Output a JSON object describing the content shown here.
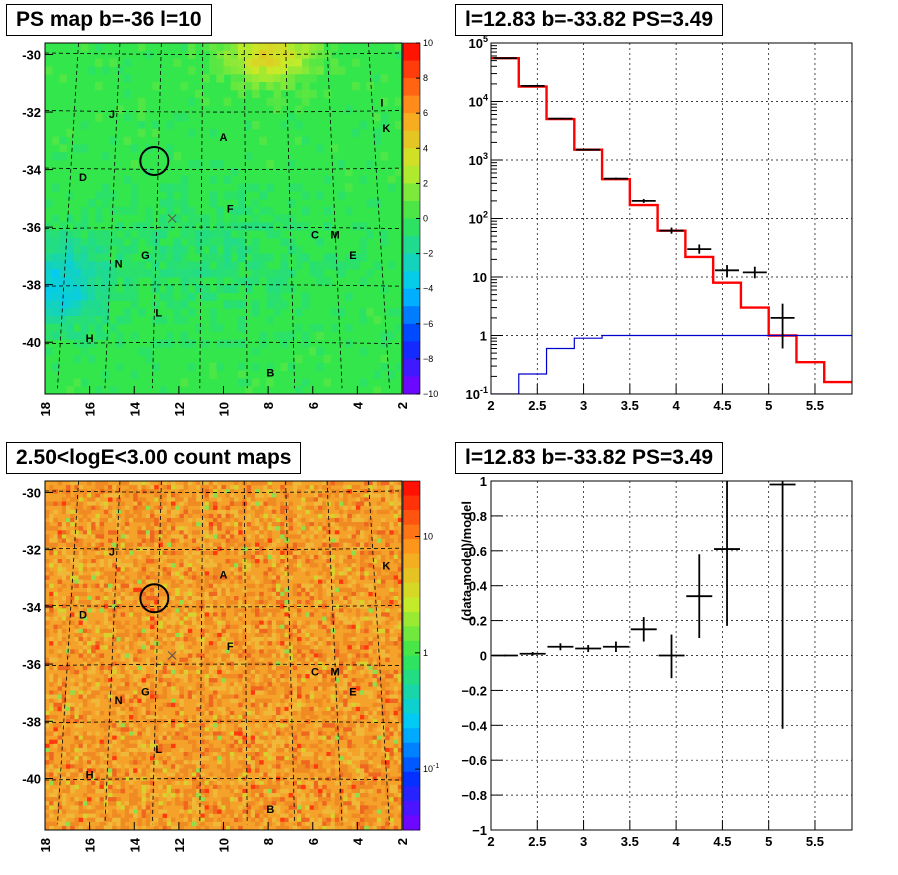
{
  "chart_data": [
    {
      "type": "heatmap",
      "title": "PS map b=-36 l=10",
      "x_ticks": [
        "18",
        "16",
        "14",
        "12",
        "10",
        "8",
        "6",
        "4",
        "2"
      ],
      "y_ticks": [
        "-30",
        "-32",
        "-34",
        "-36",
        "-38",
        "-40"
      ],
      "xlim": [
        18,
        2
      ],
      "ylim": [
        -41.8,
        -29.6
      ],
      "colorbar_ticks": [
        "10",
        "8",
        "6",
        "4",
        "2",
        "0",
        "−2",
        "−4",
        "−6",
        "−8",
        "−10"
      ],
      "colorbar_range": [
        -10,
        10
      ],
      "colors": {
        "background": "#33e64c",
        "hot": "#f0e43c",
        "cold": "#22e6d6"
      },
      "sources": [
        {
          "label": "J",
          "l": 15.0,
          "b": -32.2
        },
        {
          "label": "A",
          "l": 10.0,
          "b": -33.0
        },
        {
          "label": "I",
          "l": 2.9,
          "b": -31.8
        },
        {
          "label": "K",
          "l": 2.7,
          "b": -32.7
        },
        {
          "label": "D",
          "l": 16.3,
          "b": -34.4
        },
        {
          "label": "F",
          "l": 9.7,
          "b": -35.5
        },
        {
          "label": "C",
          "l": 5.9,
          "b": -36.4
        },
        {
          "label": "M",
          "l": 5.0,
          "b": -36.4
        },
        {
          "label": "E",
          "l": 4.2,
          "b": -37.1
        },
        {
          "label": "N",
          "l": 14.7,
          "b": -37.4
        },
        {
          "label": "G",
          "l": 13.5,
          "b": -37.1
        },
        {
          "label": "L",
          "l": 12.9,
          "b": -39.1
        },
        {
          "label": "H",
          "l": 16.0,
          "b": -40.0
        },
        {
          "label": "B",
          "l": 7.9,
          "b": -41.2
        }
      ],
      "circle": {
        "l": 13.1,
        "b": -33.7
      },
      "cross": {
        "l": 12.3,
        "b": -35.7
      }
    },
    {
      "type": "line",
      "title": "l=12.83 b=-33.82 PS=3.49",
      "xlim": [
        2,
        5.9
      ],
      "ylim": [
        0.1,
        100000
      ],
      "yscale": "log",
      "x_ticks": [
        "2",
        "2.5",
        "3",
        "3.5",
        "4",
        "4.5",
        "5",
        "5.5"
      ],
      "y_ticks": [
        {
          "sup": "-1"
        },
        {
          "text": "1"
        },
        {
          "text": "10"
        },
        {
          "sup": "2"
        },
        {
          "sup": "3"
        },
        {
          "sup": "4"
        },
        {
          "sup": "5"
        }
      ],
      "y_tick_base": "10",
      "grid": true,
      "edges": [
        2,
        2.3,
        2.6,
        2.9,
        3.2,
        3.5,
        3.8,
        4.1,
        4.4,
        4.7,
        5.0,
        5.3,
        5.6,
        5.9
      ],
      "series": [
        {
          "color": "#ff0000",
          "values": [
            55000,
            18000,
            5000,
            1500,
            470,
            170,
            62,
            22,
            8,
            3,
            1,
            0.35,
            0.16
          ]
        },
        {
          "color": "#0000cc",
          "values": [
            0.1,
            0.22,
            0.6,
            0.9,
            1.0,
            1.0,
            1.0,
            1.0,
            1.0,
            1.0,
            1.0,
            1.0,
            1.0
          ]
        }
      ],
      "points": [
        {
          "x": 2.15,
          "y": 55000,
          "lo": 54000,
          "hi": 56000
        },
        {
          "x": 2.45,
          "y": 18500,
          "lo": 18000,
          "hi": 19000
        },
        {
          "x": 2.75,
          "y": 5100,
          "lo": 5000,
          "hi": 5250
        },
        {
          "x": 3.05,
          "y": 1500,
          "lo": 1450,
          "hi": 1550
        },
        {
          "x": 3.35,
          "y": 480,
          "lo": 460,
          "hi": 500
        },
        {
          "x": 3.65,
          "y": 200,
          "lo": 185,
          "hi": 215
        },
        {
          "x": 3.95,
          "y": 62,
          "lo": 55,
          "hi": 70
        },
        {
          "x": 4.25,
          "y": 30,
          "lo": 25,
          "hi": 36
        },
        {
          "x": 4.55,
          "y": 13,
          "lo": 10,
          "hi": 16
        },
        {
          "x": 4.85,
          "y": 12,
          "lo": 9.5,
          "hi": 15
        },
        {
          "x": 5.15,
          "y": 2.0,
          "lo": 0.6,
          "hi": 3.5
        }
      ]
    },
    {
      "type": "heatmap",
      "title": "2.50<logE<3.00 count maps",
      "x_ticks": [
        "18",
        "16",
        "14",
        "12",
        "10",
        "8",
        "6",
        "4",
        "2"
      ],
      "y_ticks": [
        "-30",
        "-32",
        "-34",
        "-36",
        "-38",
        "-40"
      ],
      "xlim": [
        18,
        2
      ],
      "ylim": [
        -41.8,
        -29.6
      ],
      "colorbar_ticks": [
        {
          "text": "10",
          "v": 10
        },
        {
          "text": "1",
          "v": 1
        },
        {
          "sup": "-1",
          "v": 0.1
        }
      ],
      "colorbar_log_range": [
        0.03,
        30
      ],
      "colors": {
        "background": "#f5a22a"
      },
      "sources": [
        {
          "label": "J",
          "l": 15.0,
          "b": -32.2
        },
        {
          "label": "A",
          "l": 10.0,
          "b": -33.0
        },
        {
          "label": "K",
          "l": 2.7,
          "b": -32.7
        },
        {
          "label": "D",
          "l": 16.3,
          "b": -34.4
        },
        {
          "label": "F",
          "l": 9.7,
          "b": -35.5
        },
        {
          "label": "C",
          "l": 5.9,
          "b": -36.4
        },
        {
          "label": "M",
          "l": 5.0,
          "b": -36.4
        },
        {
          "label": "E",
          "l": 4.2,
          "b": -37.1
        },
        {
          "label": "N",
          "l": 14.7,
          "b": -37.4
        },
        {
          "label": "G",
          "l": 13.5,
          "b": -37.1
        },
        {
          "label": "L",
          "l": 12.9,
          "b": -39.1
        },
        {
          "label": "H",
          "l": 16.0,
          "b": -40.0
        },
        {
          "label": "B",
          "l": 7.9,
          "b": -41.2
        }
      ],
      "circle": {
        "l": 13.1,
        "b": -33.7
      },
      "cross": {
        "l": 12.3,
        "b": -35.7
      }
    },
    {
      "type": "scatter",
      "title": "l=12.83 b=-33.82 PS=3.49",
      "ylabel": "(data-model)/model",
      "xlim": [
        2,
        5.9
      ],
      "ylim": [
        -1,
        1
      ],
      "x_ticks": [
        "2",
        "2.5",
        "3",
        "3.5",
        "4",
        "4.5",
        "5",
        "5.5"
      ],
      "y_ticks": [
        "1",
        "0.8",
        "0.6",
        "0.4",
        "0.2",
        "0",
        "−0.2",
        "−0.4",
        "−0.6",
        "−0.8",
        "−1"
      ],
      "grid": true,
      "points": [
        {
          "x": 2.15,
          "y": 0.0,
          "lo": -0.005,
          "hi": 0.005
        },
        {
          "x": 2.45,
          "y": 0.01,
          "lo": 0.0,
          "hi": 0.02
        },
        {
          "x": 2.75,
          "y": 0.05,
          "lo": 0.03,
          "hi": 0.07
        },
        {
          "x": 3.05,
          "y": 0.04,
          "lo": 0.02,
          "hi": 0.06
        },
        {
          "x": 3.35,
          "y": 0.05,
          "lo": 0.02,
          "hi": 0.08
        },
        {
          "x": 3.65,
          "y": 0.15,
          "lo": 0.08,
          "hi": 0.22
        },
        {
          "x": 3.95,
          "y": 0.0,
          "lo": -0.13,
          "hi": 0.12
        },
        {
          "x": 4.25,
          "y": 0.34,
          "lo": 0.1,
          "hi": 0.58
        },
        {
          "x": 4.55,
          "y": 0.61,
          "lo": 0.17,
          "hi": 1.05
        },
        {
          "x": 5.15,
          "y": 0.98,
          "lo": -0.42,
          "hi": 1.05
        }
      ]
    }
  ]
}
